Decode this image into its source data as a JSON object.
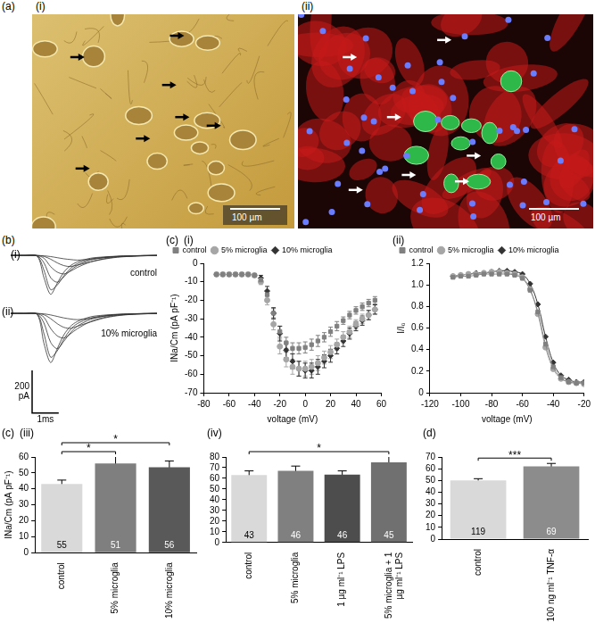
{
  "images": {
    "panel": "(a)",
    "items": [
      {
        "label": "(i)",
        "scale_bar": "100 µm"
      },
      {
        "label": "(ii)",
        "scale_bar": "100 µm"
      }
    ]
  },
  "chart_data": [
    {
      "type": "line",
      "panel": "(b)",
      "label": "(i)",
      "annotation": "control",
      "color": "#333333",
      "tick_labels": false,
      "xlim": [
        0,
        5.5
      ],
      "ylim": [
        -250,
        30
      ],
      "x": [
        0,
        0.5,
        1,
        1.25,
        1.5,
        1.75,
        2,
        2.25,
        2.5,
        3,
        3.5,
        4,
        4.5,
        5,
        5.5
      ],
      "series": [
        {
          "values": [
            0,
            0,
            -5,
            -120,
            -210,
            -150,
            -90,
            -55,
            -35,
            -15,
            -8,
            -4,
            -2,
            0,
            0
          ]
        },
        {
          "values": [
            0,
            0,
            -3,
            -80,
            -185,
            -160,
            -110,
            -70,
            -45,
            -20,
            -10,
            -5,
            -2,
            -1,
            0
          ]
        },
        {
          "values": [
            0,
            0,
            -2,
            -40,
            -120,
            -145,
            -115,
            -80,
            -55,
            -25,
            -12,
            -6,
            -3,
            -1,
            0
          ]
        },
        {
          "values": [
            0,
            0,
            -1,
            -15,
            -60,
            -90,
            -100,
            -85,
            -65,
            -35,
            -18,
            -8,
            -4,
            -2,
            0
          ]
        },
        {
          "values": [
            0,
            0,
            0,
            -5,
            -20,
            -40,
            -55,
            -60,
            -52,
            -35,
            -20,
            -10,
            -5,
            -2,
            0
          ]
        },
        {
          "values": [
            0,
            0,
            0,
            -2,
            -6,
            -12,
            -18,
            -22,
            -25,
            -20,
            -12,
            -6,
            -3,
            -1,
            0
          ]
        }
      ]
    },
    {
      "type": "line",
      "label": "(ii)",
      "annotation": "10% microglia",
      "color": "#333333",
      "tick_labels": false,
      "xlim": [
        0,
        5.5
      ],
      "ylim": [
        -250,
        30
      ],
      "scale_bar": {
        "y": 200,
        "y_label": "200 pA",
        "x": 1,
        "x_label": "1ms"
      },
      "x": [
        0,
        0.5,
        1,
        1.25,
        1.5,
        1.75,
        2,
        2.25,
        2.5,
        3,
        3.5,
        4,
        4.5,
        5,
        5.5
      ],
      "series": [
        {
          "values": [
            0,
            0,
            -6,
            -140,
            -230,
            -165,
            -100,
            -60,
            -38,
            -16,
            -8,
            -4,
            -2,
            0,
            0
          ]
        },
        {
          "values": [
            0,
            0,
            -4,
            -95,
            -205,
            -175,
            -120,
            -75,
            -48,
            -22,
            -11,
            -5,
            -2,
            -1,
            0
          ]
        },
        {
          "values": [
            0,
            0,
            -2,
            -45,
            -135,
            -165,
            -130,
            -90,
            -60,
            -28,
            -13,
            -6,
            -3,
            -1,
            0
          ]
        },
        {
          "values": [
            0,
            0,
            -1,
            -18,
            -70,
            -105,
            -115,
            -95,
            -72,
            -38,
            -19,
            -9,
            -4,
            -2,
            0
          ]
        },
        {
          "values": [
            0,
            0,
            0,
            -6,
            -24,
            -48,
            -65,
            -70,
            -60,
            -40,
            -22,
            -11,
            -5,
            -2,
            0
          ]
        },
        {
          "values": [
            0,
            0,
            0,
            -2,
            -7,
            -14,
            -21,
            -26,
            -29,
            -23,
            -13,
            -7,
            -3,
            -1,
            0
          ]
        }
      ]
    },
    {
      "type": "scatter",
      "panel": "(c)",
      "label": "(i)",
      "x_label": "voltage (mV)",
      "y_label": "INa/Cm (pA pF⁻¹)",
      "legend": "upper left",
      "grid": false,
      "xlim": [
        -80,
        60
      ],
      "xticks": [
        -80,
        -60,
        -40,
        -20,
        0,
        20,
        40,
        60
      ],
      "ylim": [
        -70,
        0
      ],
      "yticks": [
        -70,
        -60,
        -50,
        -40,
        -30,
        -20,
        -10,
        0
      ],
      "x": [
        -70,
        -65,
        -60,
        -55,
        -50,
        -45,
        -40,
        -35,
        -30,
        -25,
        -20,
        -15,
        -10,
        -5,
        0,
        5,
        10,
        15,
        20,
        25,
        30,
        35,
        40,
        45,
        50,
        55
      ],
      "series": [
        {
          "name": "control",
          "color": "#808080",
          "marker": "square",
          "values": [
            -6,
            -6,
            -6,
            -6,
            -6,
            -6,
            -6.5,
            -9,
            -17,
            -27,
            -37,
            -43,
            -46,
            -46,
            -45.5,
            -44,
            -42,
            -40,
            -37,
            -34,
            -31,
            -28,
            -25.5,
            -23.5,
            -21.5,
            -20
          ],
          "errors": [
            0.5,
            0.5,
            0.5,
            0.5,
            0.5,
            0.5,
            0.6,
            1,
            2,
            2.5,
            3,
            3,
            3,
            3,
            3,
            3,
            3,
            2.5,
            2.5,
            2.5,
            2,
            2,
            2,
            2,
            2,
            2
          ]
        },
        {
          "name": "5% microglia",
          "color": "#a6a6a6",
          "marker": "circle",
          "values": [
            -6,
            -6,
            -6,
            -6,
            -6,
            -6,
            -6.5,
            -10,
            -20,
            -33,
            -45,
            -52,
            -56,
            -57,
            -57,
            -56,
            -54,
            -51,
            -48,
            -44,
            -40,
            -37,
            -33,
            -30,
            -28,
            -25
          ],
          "errors": [
            0.5,
            0.5,
            0.5,
            0.5,
            0.5,
            0.5,
            0.6,
            1.5,
            2.5,
            3,
            4,
            4,
            4,
            4,
            4,
            4,
            4,
            3.5,
            3.5,
            3,
            3,
            3,
            2.5,
            2.5,
            2.5,
            2.5
          ]
        },
        {
          "name": "10% microglia",
          "color": "#333333",
          "marker": "diamond",
          "values": [
            -6,
            -6,
            -6,
            -6,
            -6,
            -6,
            -6.5,
            -8,
            -15,
            -27,
            -38,
            -47,
            -53,
            -57,
            -58,
            -58,
            -56,
            -53,
            -50,
            -46,
            -42,
            -38,
            -34,
            -31,
            -28,
            -25
          ],
          "errors": [
            0.5,
            0.5,
            0.5,
            0.5,
            0.5,
            0.5,
            0.6,
            1.5,
            2.5,
            3,
            4,
            4,
            4,
            4,
            4,
            4,
            4,
            3.5,
            3.5,
            3,
            3,
            3,
            2.5,
            2.5,
            2.5,
            2.5
          ]
        }
      ]
    },
    {
      "type": "scatter",
      "label": "(ii)",
      "x_label": "voltage (mV)",
      "y_label": "I/I₀",
      "legend": "upper left",
      "grid": false,
      "xlim": [
        -120,
        -20
      ],
      "xticks": [
        -120,
        -100,
        -80,
        -60,
        -40,
        -20
      ],
      "ylim": [
        0,
        1.2
      ],
      "yticks": [
        0,
        0.2,
        0.4,
        0.6,
        0.8,
        {
          "value": 1,
          "label": "1.0"
        },
        1.2
      ],
      "x": [
        -105,
        -100,
        -95,
        -90,
        -85,
        -80,
        -75,
        -70,
        -65,
        -60,
        -55,
        -50,
        -45,
        -40,
        -35,
        -30,
        -25,
        -20
      ],
      "series": [
        {
          "name": "control",
          "color": "#808080",
          "marker": "square",
          "line_style": "solid",
          "values": [
            1.07,
            1.08,
            1.08,
            1.09,
            1.1,
            1.1,
            1.1,
            1.1,
            1.09,
            1.06,
            0.95,
            0.75,
            0.45,
            0.24,
            0.14,
            0.1,
            0.09,
            0.09
          ]
        },
        {
          "name": "5% microglia",
          "color": "#a6a6a6",
          "marker": "circle",
          "line_style": "solid",
          "values": [
            1.08,
            1.09,
            1.1,
            1.1,
            1.11,
            1.12,
            1.12,
            1.11,
            1.1,
            1.07,
            0.96,
            0.73,
            0.42,
            0.22,
            0.13,
            0.1,
            0.09,
            0.08
          ]
        },
        {
          "name": "10% microglia",
          "color": "#333333",
          "marker": "diamond",
          "line_style": "solid",
          "values": [
            1.08,
            1.09,
            1.1,
            1.11,
            1.11,
            1.12,
            1.13,
            1.13,
            1.12,
            1.1,
            1.01,
            0.82,
            0.52,
            0.28,
            0.16,
            0.12,
            0.1,
            0.1
          ]
        }
      ]
    },
    {
      "type": "bar",
      "panel": "(c)",
      "label": "(iii)",
      "y_label": "INa/Cm (pA pF⁻¹)",
      "grid": false,
      "categories": [
        "control",
        "5% microglia",
        "10% microglia"
      ],
      "values": [
        43,
        56,
        53.5
      ],
      "errors": [
        2.5,
        5,
        4
      ],
      "n": [
        55,
        51,
        56
      ],
      "colors": [
        "#d9d9d9",
        "#7f7f7f",
        "#595959"
      ],
      "ylim": [
        0,
        60
      ],
      "yticks": [
        0,
        10,
        20,
        30,
        40,
        50,
        60
      ],
      "significance": [
        {
          "from": "control",
          "to": "5% microglia",
          "label": "*"
        },
        {
          "from": "control",
          "to": "10% microglia",
          "label": "*"
        }
      ]
    },
    {
      "type": "bar",
      "label": "(iv)",
      "grid": false,
      "categories": [
        "control",
        "5% microglia",
        "1 µg ml⁻¹ LPS",
        "5% microglia + 1 µg ml⁻¹ LPS"
      ],
      "values": [
        63,
        67,
        63.5,
        75
      ],
      "errors": [
        4,
        4.5,
        3.5,
        5.5
      ],
      "n": [
        43,
        46,
        46,
        45
      ],
      "colors": [
        "#d9d9d9",
        "#808080",
        "#4d4d4d",
        "#707070"
      ],
      "ylim": [
        0,
        80
      ],
      "yticks": [
        0,
        10,
        20,
        30,
        40,
        50,
        60,
        70,
        80
      ],
      "significance": [
        {
          "from": "control",
          "to": "5% microglia + 1 µg ml⁻¹ LPS",
          "label": "*"
        }
      ]
    },
    {
      "type": "bar",
      "panel": "(d)",
      "grid": false,
      "categories": [
        "control",
        "100 ng ml⁻¹ TNF-α"
      ],
      "values": [
        50,
        62
      ],
      "errors": [
        1.5,
        2.5
      ],
      "n": [
        119,
        69
      ],
      "colors": [
        "#d9d9d9",
        "#8c8c8c"
      ],
      "ylim": [
        0,
        70
      ],
      "yticks": [
        0,
        10,
        20,
        30,
        40,
        50,
        60,
        70
      ],
      "significance": [
        {
          "from": "control",
          "to": "100 ng ml⁻¹ TNF-α",
          "label": "***"
        }
      ]
    }
  ]
}
